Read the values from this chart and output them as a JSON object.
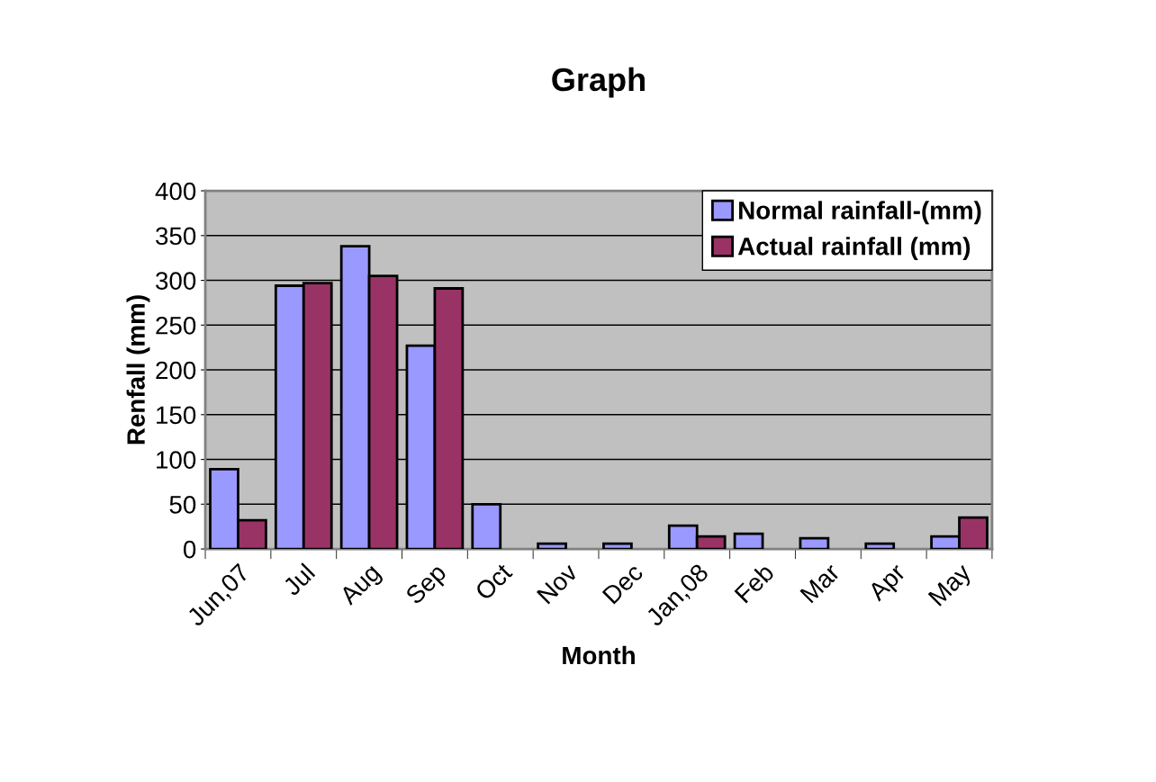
{
  "chart_data": {
    "type": "bar",
    "title": "Graph",
    "xlabel": "Month",
    "ylabel": "Renfall (mm)",
    "categories": [
      "Jun,07",
      "Jul",
      "Aug",
      "Sep",
      "Oct",
      "Nov",
      "Dec",
      "Jan,08",
      "Feb",
      "Mar",
      "Apr",
      "May"
    ],
    "series": [
      {
        "name": "Normal rainfall-(mm)",
        "color": "#9999ff",
        "values": [
          89,
          294,
          338,
          227,
          50,
          6,
          6,
          26,
          17,
          12,
          6,
          14
        ]
      },
      {
        "name": "Actual rainfall (mm)",
        "color": "#993366",
        "values": [
          32,
          297,
          305,
          291,
          null,
          null,
          null,
          14,
          null,
          null,
          null,
          35
        ]
      }
    ],
    "ylim": [
      0,
      400
    ],
    "yticks": [
      0,
      50,
      100,
      150,
      200,
      250,
      300,
      350,
      400
    ],
    "grid": "y",
    "legend": "top right"
  }
}
